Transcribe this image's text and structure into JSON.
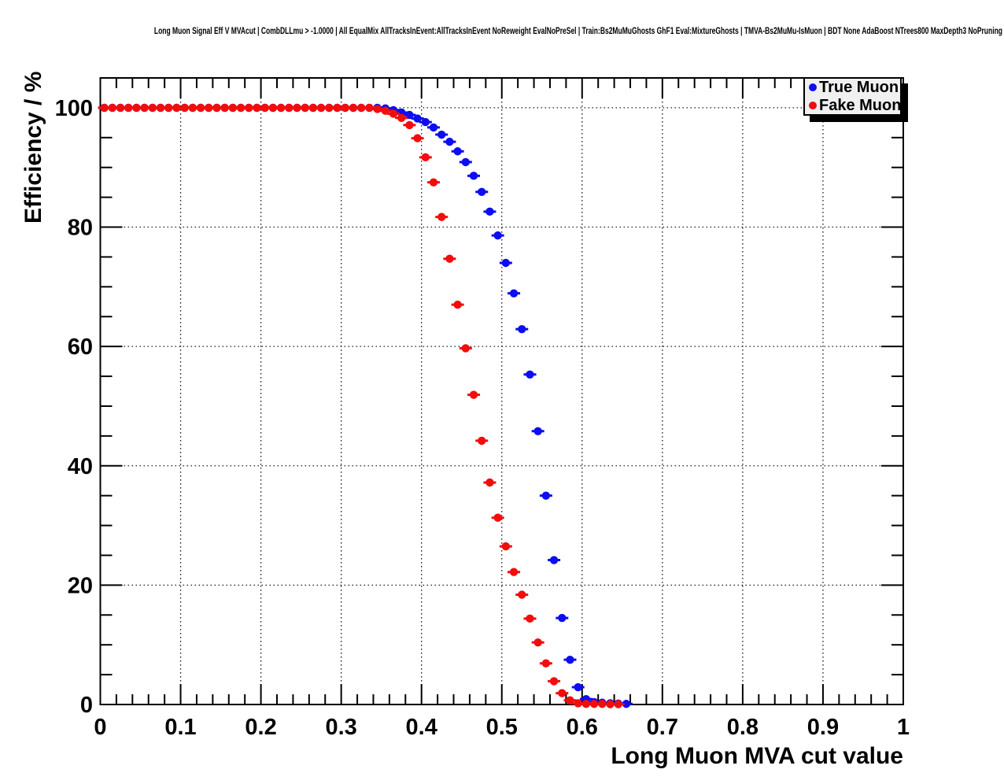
{
  "title": "Long Muon Signal Eff V MVAcut | CombDLLmu > -1.0000 | All EqualMix AllTracksInEvent:AllTracksInEvent NoReweight EvalNoPreSel | Train:Bs2MuMuGhosts GhF1 Eval:MixtureGhosts | TMVA-Bs2MuMu-IsMuon | BDT None AdaBoost NTrees800 MaxDepth3 NoPruning !UseReg",
  "axes": {
    "xlabel": "Long Muon MVA cut value",
    "ylabel": "Efficiency / %"
  },
  "legend": {
    "items": [
      {
        "label": "True Muon",
        "color": "#0d0df2",
        "marker": "circle-icon"
      },
      {
        "label": "Fake Muon",
        "color": "#f20d0d",
        "marker": "circle-icon"
      }
    ]
  },
  "chart_data": {
    "type": "scatter",
    "title": "Long Muon Signal Eff V MVAcut | CombDLLmu > -1.0000 | All EqualMix AllTracksInEvent:AllTracksInEvent NoReweight EvalNoPreSel | Train:Bs2MuMuGhosts GhF1 Eval:MixtureGhosts | TMVA-Bs2MuMu-IsMuon | BDT None AdaBoost NTrees800 MaxDepth3 NoPruning !UseReg",
    "xlabel": "Long Muon MVA cut value",
    "ylabel": "Efficiency / %",
    "xlim": [
      0,
      1
    ],
    "ylim": [
      0,
      105
    ],
    "grid": true,
    "grid_style": "dotted",
    "legend_position": "top-right",
    "x_ticks": {
      "values": [
        0,
        0.1,
        0.2,
        0.3,
        0.4,
        0.5,
        0.6,
        0.7,
        0.8,
        0.9,
        1
      ],
      "labels": [
        "0",
        "0.1",
        "0.2",
        "0.3",
        "0.4",
        "0.5",
        "0.6",
        "0.7",
        "0.8",
        "0.9",
        "1"
      ],
      "minor_step": 0.02
    },
    "y_ticks": {
      "values": [
        0,
        20,
        40,
        60,
        80,
        100
      ],
      "labels": [
        "0",
        "20",
        "40",
        "60",
        "80",
        "100"
      ],
      "minor_step": 5
    },
    "series": [
      {
        "name": "True Muon",
        "color": "#0d0df2",
        "marker": "circle",
        "x_err": 0.005,
        "x": [
          0.005,
          0.015,
          0.025,
          0.035,
          0.045,
          0.055,
          0.065,
          0.075,
          0.085,
          0.095,
          0.105,
          0.115,
          0.125,
          0.135,
          0.145,
          0.155,
          0.165,
          0.175,
          0.185,
          0.195,
          0.205,
          0.215,
          0.225,
          0.235,
          0.245,
          0.255,
          0.265,
          0.275,
          0.285,
          0.295,
          0.305,
          0.315,
          0.325,
          0.335,
          0.345,
          0.355,
          0.365,
          0.375,
          0.385,
          0.395,
          0.405,
          0.415,
          0.425,
          0.435,
          0.445,
          0.455,
          0.465,
          0.475,
          0.485,
          0.495,
          0.505,
          0.515,
          0.525,
          0.535,
          0.545,
          0.555,
          0.565,
          0.575,
          0.585,
          0.595,
          0.605,
          0.615,
          0.625,
          0.635,
          0.645,
          0.655
        ],
        "y": [
          100,
          100,
          100,
          100,
          100,
          100,
          100,
          100,
          100,
          100,
          100,
          100,
          100,
          100,
          100,
          100,
          100,
          100,
          100,
          100,
          100,
          100,
          100,
          100,
          100,
          100,
          100,
          100,
          100,
          100,
          100,
          100,
          100,
          100,
          100,
          99.9,
          99.6,
          99.2,
          98.8,
          98.2,
          97.6,
          96.7,
          95.5,
          94.3,
          92.7,
          90.9,
          88.6,
          85.9,
          82.6,
          78.6,
          74.0,
          68.9,
          62.9,
          55.3,
          45.8,
          35.0,
          24.2,
          14.5,
          7.5,
          2.9,
          0.9,
          0.4,
          0.3,
          0.2,
          0.15,
          0.1
        ]
      },
      {
        "name": "Fake Muon",
        "color": "#f20d0d",
        "marker": "circle",
        "x_err": 0.005,
        "x": [
          0.005,
          0.015,
          0.025,
          0.035,
          0.045,
          0.055,
          0.065,
          0.075,
          0.085,
          0.095,
          0.105,
          0.115,
          0.125,
          0.135,
          0.145,
          0.155,
          0.165,
          0.175,
          0.185,
          0.195,
          0.205,
          0.215,
          0.225,
          0.235,
          0.245,
          0.255,
          0.265,
          0.275,
          0.285,
          0.295,
          0.305,
          0.315,
          0.325,
          0.335,
          0.345,
          0.355,
          0.365,
          0.375,
          0.385,
          0.395,
          0.405,
          0.415,
          0.425,
          0.435,
          0.445,
          0.455,
          0.465,
          0.475,
          0.485,
          0.495,
          0.505,
          0.515,
          0.525,
          0.535,
          0.545,
          0.555,
          0.565,
          0.575,
          0.585,
          0.595,
          0.605,
          0.615,
          0.625,
          0.635,
          0.645
        ],
        "y": [
          100,
          100,
          100,
          100,
          100,
          100,
          100,
          100,
          100,
          100,
          100,
          100,
          100,
          100,
          100,
          100,
          100,
          100,
          100,
          100,
          100,
          100,
          100,
          100,
          100,
          100,
          100,
          100,
          100,
          100,
          100,
          100,
          100,
          100,
          99.8,
          99.5,
          99.0,
          98.3,
          97.1,
          94.9,
          91.7,
          87.5,
          81.7,
          74.7,
          67.0,
          59.7,
          51.9,
          44.2,
          37.2,
          31.3,
          26.5,
          22.2,
          18.4,
          14.4,
          10.4,
          6.9,
          3.9,
          1.9,
          0.7,
          0.2,
          0.1,
          0.1,
          0.1,
          0.05,
          0.05
        ]
      }
    ]
  }
}
